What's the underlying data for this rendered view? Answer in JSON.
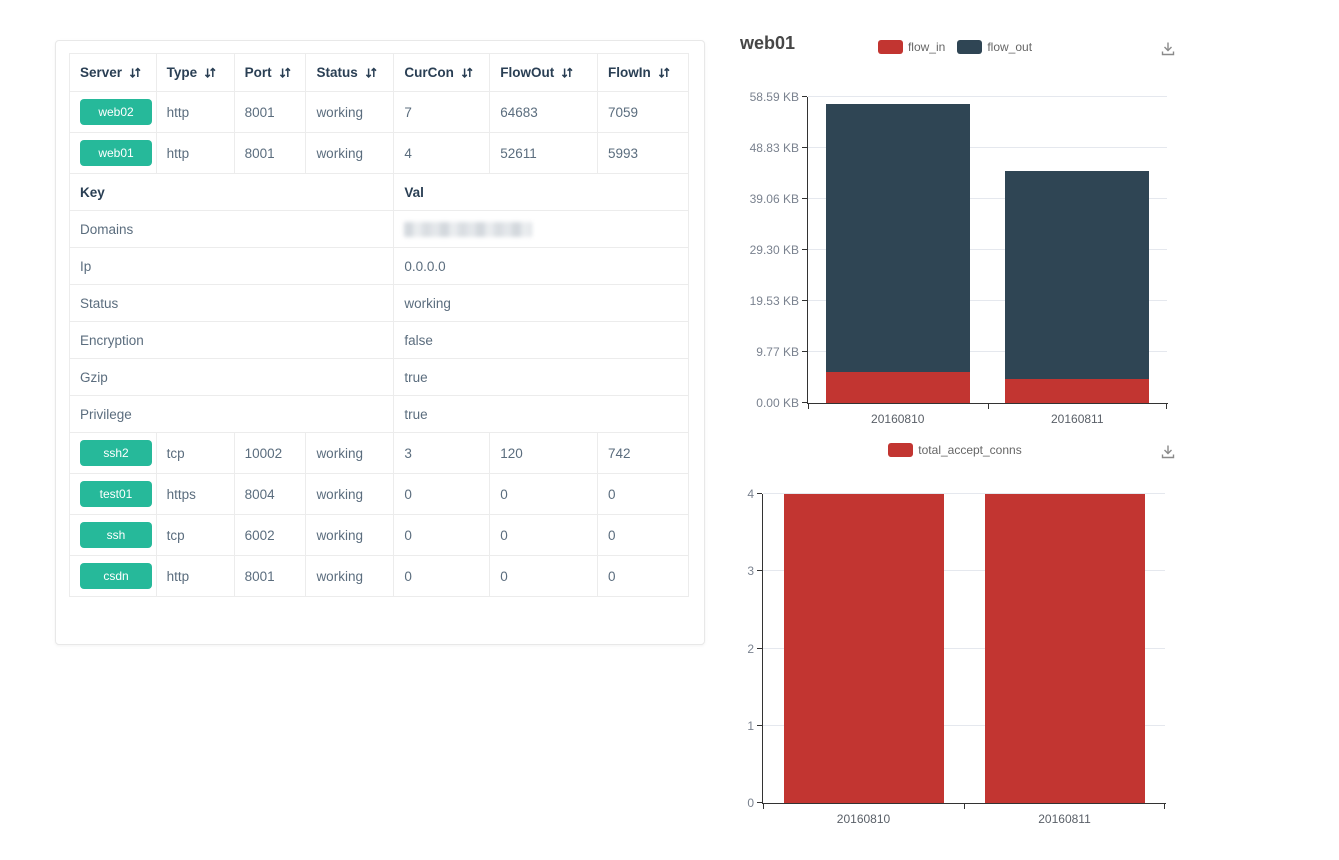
{
  "accents": {
    "green": "#26b99a",
    "red": "#c23531",
    "dark_blue": "#2f4554"
  },
  "icons": {
    "sort": "sort-both-icon",
    "download": "save-as-image-icon"
  },
  "table": {
    "columns": [
      {
        "label": "Server",
        "sortable": true
      },
      {
        "label": "Type",
        "sortable": true
      },
      {
        "label": "Port",
        "sortable": true
      },
      {
        "label": "Status",
        "sortable": true
      },
      {
        "label": "CurCon",
        "sortable": true
      },
      {
        "label": "FlowOut",
        "sortable": true
      },
      {
        "label": "FlowIn",
        "sortable": true
      }
    ],
    "top_rows": [
      {
        "server": "web02",
        "type": "http",
        "port": "8001",
        "status": "working",
        "curcon": "7",
        "flowout": "64683",
        "flowin": "7059"
      },
      {
        "server": "web01",
        "type": "http",
        "port": "8001",
        "status": "working",
        "curcon": "4",
        "flowout": "52611",
        "flowin": "5993"
      }
    ],
    "kv_header": {
      "key": "Key",
      "val": "Val"
    },
    "kv_rows": [
      {
        "key": "Domains",
        "val": "",
        "redacted": true
      },
      {
        "key": "Ip",
        "val": "0.0.0.0"
      },
      {
        "key": "Status",
        "val": "working"
      },
      {
        "key": "Encryption",
        "val": "false"
      },
      {
        "key": "Gzip",
        "val": "true"
      },
      {
        "key": "Privilege",
        "val": "true"
      }
    ],
    "bottom_rows": [
      {
        "server": "ssh2",
        "type": "tcp",
        "port": "10002",
        "status": "working",
        "curcon": "3",
        "flowout": "120",
        "flowin": "742"
      },
      {
        "server": "test01",
        "type": "https",
        "port": "8004",
        "status": "working",
        "curcon": "0",
        "flowout": "0",
        "flowin": "0"
      },
      {
        "server": "ssh",
        "type": "tcp",
        "port": "6002",
        "status": "working",
        "curcon": "0",
        "flowout": "0",
        "flowin": "0"
      },
      {
        "server": "csdn",
        "type": "http",
        "port": "8001",
        "status": "working",
        "curcon": "0",
        "flowout": "0",
        "flowin": "0"
      }
    ]
  },
  "chart_data": [
    {
      "type": "bar",
      "stacked": true,
      "title": "web01",
      "categories": [
        "20160810",
        "20160811"
      ],
      "series": [
        {
          "name": "flow_in",
          "color": "#c23531",
          "values": [
            5.85,
            4.6
          ]
        },
        {
          "name": "flow_out",
          "color": "#2f4554",
          "values": [
            51.38,
            39.8
          ]
        }
      ],
      "unit": "KB",
      "ylim": [
        0,
        58.59
      ],
      "yticks": [
        "0.00 KB",
        "9.77 KB",
        "19.53 KB",
        "29.30 KB",
        "39.06 KB",
        "48.83 KB",
        "58.59 KB"
      ],
      "legend_position": "top",
      "grid": true,
      "toolbox": [
        "save-as-image"
      ]
    },
    {
      "type": "bar",
      "stacked": false,
      "title": "",
      "categories": [
        "20160810",
        "20160811"
      ],
      "series": [
        {
          "name": "total_accept_conns",
          "color": "#c23531",
          "values": [
            4,
            4
          ]
        }
      ],
      "unit": "",
      "ylim": [
        0,
        4
      ],
      "yticks": [
        "0",
        "1",
        "2",
        "3",
        "4"
      ],
      "legend_position": "top",
      "grid": true,
      "toolbox": [
        "save-as-image"
      ]
    }
  ]
}
